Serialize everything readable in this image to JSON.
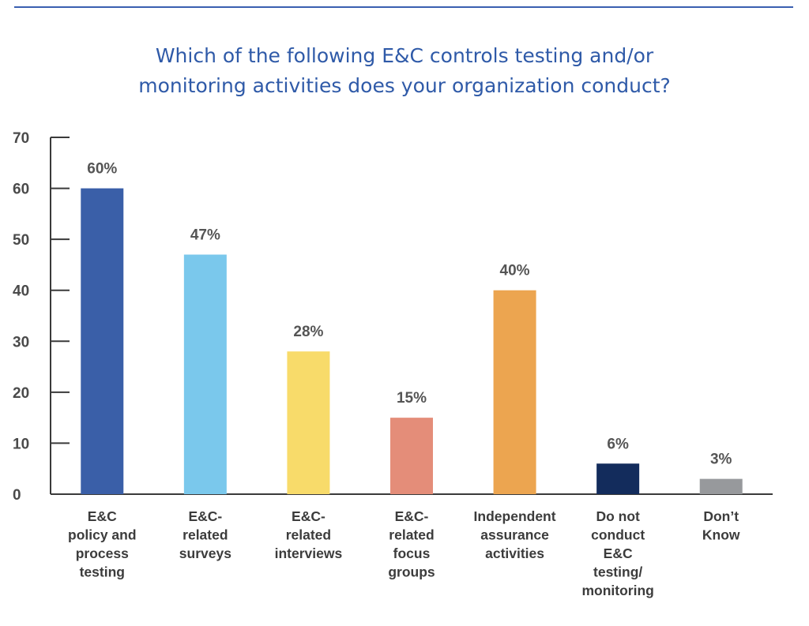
{
  "chart_data": {
    "type": "bar",
    "title_lines": [
      "Which of the following E&C controls testing and/or",
      "monitoring activities does your organization conduct?"
    ],
    "categories": [
      [
        "E&C",
        "policy and",
        "process",
        "testing"
      ],
      [
        "E&C-",
        "related",
        "surveys"
      ],
      [
        "E&C-",
        "related",
        "interviews"
      ],
      [
        "E&C-",
        "related",
        "focus",
        "groups"
      ],
      [
        "Independent",
        "assurance",
        "activities"
      ],
      [
        "Do not",
        "conduct",
        "E&C",
        "testing/",
        "monitoring"
      ],
      [
        "Don’t",
        "Know"
      ]
    ],
    "values": [
      60,
      47,
      28,
      15,
      40,
      6,
      3
    ],
    "value_labels": [
      "60%",
      "47%",
      "28%",
      "15%",
      "40%",
      "6%",
      "3%"
    ],
    "colors": [
      "#3a5fa8",
      "#7ac8ec",
      "#f8db6a",
      "#e48d79",
      "#eca550",
      "#132c5c",
      "#97999c"
    ],
    "ylim": [
      0,
      70
    ],
    "yticks": [
      0,
      10,
      20,
      30,
      40,
      50,
      60,
      70
    ],
    "grid": false,
    "legend": "none"
  }
}
